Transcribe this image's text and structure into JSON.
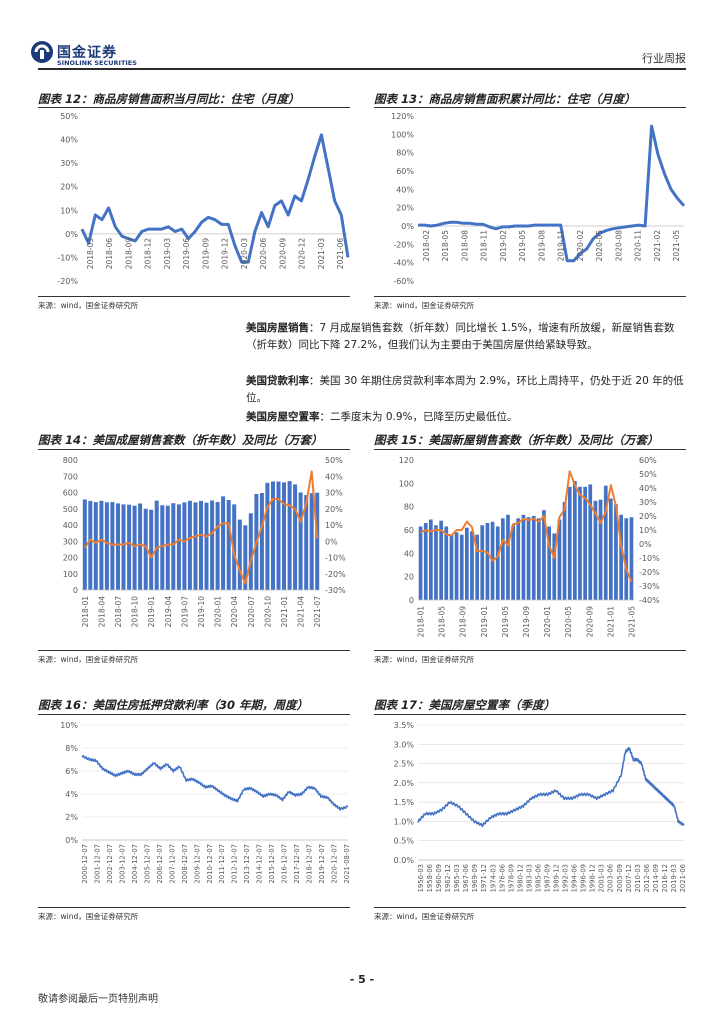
{
  "header": {
    "logo_cn": "国金证券",
    "logo_en": "SINOLINK SECURITIES",
    "report_type": "行业周报"
  },
  "figures": {
    "f12": {
      "title": "图表 12：商品房销售面积当月同比：住宅（月度）",
      "source": "来源：wind，国金证券研究所"
    },
    "f13": {
      "title": "图表 13：商品房销售面积累计同比：住宅（月度）",
      "source": "来源：wind，国金证券研究所"
    },
    "f14": {
      "title": "图表 14：美国成屋销售套数（折年数）及同比（万套）",
      "source": "来源：wind，国金证券研究所"
    },
    "f15": {
      "title": "图表 15：美国新屋销售套数（折年数）及同比（万套）",
      "source": "来源：wind，国金证券研究所"
    },
    "f16": {
      "title": "图表 16：美国住房抵押贷款利率（30 年期，周度）",
      "source": "来源：wind，国金证券研究所"
    },
    "f17": {
      "title": "图表 17：美国房屋空置率（季度）",
      "source": "来源：wind，国金证券研究所"
    }
  },
  "paragraphs": [
    {
      "label": "美国房屋销售",
      "text": "：7 月成屋销售套数（折年数）同比增长 1.5%，增速有所放缓，新屋销售套数（折年数）同比下降 27.2%，但我们认为主要由于美国房屋供给紧缺导致。"
    },
    {
      "label": "美国贷款利率",
      "text": "：美国 30 年期住房贷款利率本周为 2.9%，环比上周持平，仍处于近 20 年的低位。"
    },
    {
      "label": "美国房屋空置率",
      "text": "：二季度末为 0.9%，已降至历史最低位。"
    }
  ],
  "footer": {
    "page": "- 5 -",
    "disclaimer": "敬请参阅最后一页特别声明"
  },
  "colors": {
    "line": "#4472c4",
    "bar": "#4472c4",
    "line2": "#ed7d31"
  },
  "chart_data": [
    {
      "id": "f12",
      "type": "line",
      "title": "商品房销售面积当月同比：住宅（月度）",
      "ylim": [
        -20,
        50
      ],
      "yticks": [
        "-20%",
        "-10%",
        "0%",
        "10%",
        "20%",
        "30%",
        "40%",
        "50%"
      ],
      "xticks": [
        "2018-03",
        "2018-06",
        "2018-09",
        "2018-12",
        "2019-03",
        "2019-06",
        "2019-09",
        "2019-12",
        "2020-03",
        "2020-06",
        "2020-09",
        "2020-12",
        "2021-03",
        "2021-06"
      ],
      "x": [
        "2018-03",
        "2018-04",
        "2018-05",
        "2018-06",
        "2018-07",
        "2018-08",
        "2018-09",
        "2018-10",
        "2018-11",
        "2018-12",
        "2019-01",
        "2019-02",
        "2019-03",
        "2019-04",
        "2019-05",
        "2019-06",
        "2019-07",
        "2019-08",
        "2019-09",
        "2019-10",
        "2019-11",
        "2019-12",
        "2020-01",
        "2020-02",
        "2020-03",
        "2020-04",
        "2020-05",
        "2020-06",
        "2020-07",
        "2020-08",
        "2020-09",
        "2020-10",
        "2020-11",
        "2020-12",
        "2021-01",
        "2021-02",
        "2021-03",
        "2021-04",
        "2021-05",
        "2021-06",
        "2021-07"
      ],
      "values": [
        2,
        -4,
        8,
        6,
        11,
        3,
        -1,
        -2,
        -3,
        1,
        2,
        2,
        2,
        3,
        1,
        2,
        -2,
        1,
        5,
        7,
        6,
        4,
        4,
        -5,
        -12,
        -12,
        1,
        9,
        3,
        12,
        14,
        8,
        16,
        14,
        23,
        33,
        42,
        28,
        14,
        8,
        -10
      ]
    },
    {
      "id": "f13",
      "type": "line",
      "title": "商品房销售面积累计同比：住宅（月度）",
      "ylim": [
        -60,
        120
      ],
      "yticks": [
        "-60%",
        "-40%",
        "-20%",
        "0%",
        "20%",
        "40%",
        "60%",
        "80%",
        "100%",
        "120%"
      ],
      "xticks": [
        "2018-02",
        "2018-05",
        "2018-08",
        "2018-11",
        "2019-02",
        "2019-05",
        "2019-08",
        "2019-11",
        "2020-02",
        "2020-05",
        "2020-08",
        "2020-11",
        "2021-02",
        "2021-05"
      ],
      "x": [
        "2018-02",
        "2018-03",
        "2018-04",
        "2018-05",
        "2018-06",
        "2018-07",
        "2018-08",
        "2018-09",
        "2018-10",
        "2018-11",
        "2018-12",
        "2019-01",
        "2019-02",
        "2019-03",
        "2019-04",
        "2019-05",
        "2019-06",
        "2019-07",
        "2019-08",
        "2019-09",
        "2019-10",
        "2019-11",
        "2019-12",
        "2020-01",
        "2020-02",
        "2020-03",
        "2020-04",
        "2020-05",
        "2020-06",
        "2020-07",
        "2020-08",
        "2020-09",
        "2020-10",
        "2020-11",
        "2020-12",
        "2021-01",
        "2021-02",
        "2021-03",
        "2021-04",
        "2021-05",
        "2021-06",
        "2021-07"
      ],
      "values": [
        1,
        1,
        0,
        1,
        3,
        4,
        4,
        3,
        3,
        2,
        2,
        -1,
        -3,
        -1,
        -1,
        0,
        0,
        0,
        1,
        1,
        1,
        1,
        1,
        -38,
        -38,
        -30,
        -25,
        -14,
        -8,
        -5,
        -3,
        -2,
        -1,
        0,
        1,
        0,
        109,
        78,
        57,
        40,
        30,
        22
      ]
    },
    {
      "id": "f14",
      "type": "bar+line",
      "title": "美国成屋销售套数（折年数）及同比（万套）",
      "ylim": [
        0,
        800
      ],
      "y2lim": [
        -30,
        50
      ],
      "yticks": [
        "0",
        "100",
        "200",
        "300",
        "400",
        "500",
        "600",
        "700",
        "800"
      ],
      "y2ticks": [
        "-30%",
        "-20%",
        "-10%",
        "0%",
        "10%",
        "20%",
        "30%",
        "40%",
        "50%"
      ],
      "xticks": [
        "2018-01",
        "2018-04",
        "2018-07",
        "2018-10",
        "2019-01",
        "2019-04",
        "2019-07",
        "2019-10",
        "2020-01",
        "2020-04",
        "2020-07",
        "2020-10",
        "2021-01",
        "2021-04",
        "2021-07"
      ],
      "series": [
        {
          "name": "成屋销售套数",
          "values": [
            557,
            548,
            541,
            549,
            540,
            541,
            533,
            527,
            525,
            519,
            532,
            500,
            494,
            550,
            521,
            519,
            534,
            527,
            539,
            549,
            539,
            548,
            537,
            551,
            541,
            576,
            554,
            527,
            433,
            398,
            472,
            591,
            597,
            660,
            668,
            667,
            662,
            670,
            650,
            600,
            584,
            596,
            599
          ]
        },
        {
          "name": "同比",
          "values": [
            -4,
            1,
            -1,
            1,
            -1,
            -2,
            -2,
            -2,
            -1,
            -3,
            -2,
            -3,
            -10,
            -4,
            -3,
            -2,
            -2,
            1,
            0,
            2,
            3,
            4,
            3,
            5,
            9,
            11,
            11,
            -8,
            -18,
            -26,
            -12,
            -1,
            9,
            21,
            26,
            26,
            23,
            22,
            20,
            12,
            23,
            43,
            1.5
          ]
        }
      ]
    },
    {
      "id": "f15",
      "type": "bar+line",
      "title": "美国新屋销售套数（折年数）及同比（万套）",
      "ylim": [
        0,
        120
      ],
      "y2lim": [
        -40,
        60
      ],
      "yticks": [
        "0",
        "20",
        "40",
        "60",
        "80",
        "100",
        "120"
      ],
      "y2ticks": [
        "-40%",
        "-30%",
        "-20%",
        "-10%",
        "0%",
        "10%",
        "20%",
        "30%",
        "40%",
        "50%",
        "60%"
      ],
      "xticks": [
        "2018-01",
        "2018-05",
        "2018-09",
        "2019-01",
        "2019-05",
        "2019-09",
        "2020-01",
        "2020-05",
        "2020-09",
        "2021-01",
        "2021-05"
      ],
      "series": [
        {
          "name": "新屋销售套数",
          "values": [
            63,
            66,
            69,
            64,
            68,
            63,
            56,
            58,
            56,
            62,
            59,
            56,
            64,
            66,
            67,
            63,
            70,
            73,
            64,
            70,
            73,
            71,
            72,
            70,
            77,
            63,
            57,
            69,
            84,
            97,
            102,
            97,
            97,
            99,
            85,
            86,
            98,
            87,
            82,
            73,
            70,
            71
          ]
        },
        {
          "name": "同比",
          "values": [
            8,
            10,
            9,
            10,
            10,
            7,
            6,
            10,
            10,
            16,
            12,
            -5,
            -5,
            -6,
            -12,
            -9,
            3,
            -1,
            14,
            15,
            18,
            17,
            18,
            16,
            20,
            -1,
            -10,
            19,
            25,
            52,
            42,
            35,
            33,
            28,
            22,
            15,
            23,
            42,
            27,
            -1,
            -18,
            -27
          ]
        }
      ]
    },
    {
      "id": "f16",
      "type": "line",
      "title": "美国住房抵押贷款利率（30 年期，周度）",
      "ylim": [
        0,
        10
      ],
      "yticks": [
        "0%",
        "2%",
        "4%",
        "6%",
        "8%",
        "10%"
      ],
      "xticks": [
        "2000-12-07",
        "2001-12-07",
        "2002-12-07",
        "2003-12-07",
        "2004-12-07",
        "2005-12-07",
        "2006-12-07",
        "2007-12-07",
        "2008-12-07",
        "2009-12-07",
        "2010-12-07",
        "2011-12-07",
        "2012-12-07",
        "2013-12-07",
        "2014-12-07",
        "2015-12-07",
        "2016-12-07",
        "2017-12-07",
        "2018-12-07",
        "2019-12-07",
        "2020-12-07",
        "2021-08-07"
      ],
      "x": [
        2000.9,
        2001.5,
        2002.0,
        2002.5,
        2003.0,
        2003.5,
        2004.0,
        2004.5,
        2005.0,
        2005.5,
        2006.0,
        2006.5,
        2007.0,
        2007.5,
        2008.0,
        2008.5,
        2009.0,
        2009.5,
        2010.0,
        2010.5,
        2011.0,
        2011.5,
        2012.0,
        2012.5,
        2013.0,
        2013.5,
        2014.0,
        2014.5,
        2015.0,
        2015.5,
        2016.0,
        2016.5,
        2017.0,
        2017.5,
        2018.0,
        2018.5,
        2019.0,
        2019.5,
        2020.0,
        2020.5,
        2021.0,
        2021.6
      ],
      "values": [
        7.3,
        7.0,
        6.9,
        6.2,
        5.9,
        5.6,
        5.8,
        6.0,
        5.7,
        5.7,
        6.2,
        6.7,
        6.2,
        6.6,
        6.0,
        6.4,
        5.2,
        5.3,
        5.0,
        4.6,
        4.7,
        4.3,
        3.9,
        3.6,
        3.4,
        4.4,
        4.5,
        4.2,
        3.8,
        4.0,
        3.9,
        3.5,
        4.2,
        3.9,
        4.0,
        4.6,
        4.5,
        3.8,
        3.7,
        3.1,
        2.7,
        2.9
      ]
    },
    {
      "id": "f17",
      "type": "line",
      "title": "美国房屋空置率（季度）",
      "ylim": [
        0,
        3.5
      ],
      "yticks": [
        "0.0%",
        "0.5%",
        "1.0%",
        "1.5%",
        "2.0%",
        "2.5%",
        "3.0%",
        "3.5%"
      ],
      "xticks": [
        "1956-03",
        "1958-06",
        "1960-09",
        "1962-12",
        "1965-03",
        "1967-06",
        "1969-09",
        "1971-12",
        "1974-03",
        "1976-06",
        "1978-09",
        "1980-12",
        "1983-03",
        "1985-06",
        "1987-09",
        "1989-12",
        "1992-03",
        "1994-06",
        "1996-09",
        "1998-12",
        "2001-03",
        "2003-06",
        "2005-09",
        "2007-12",
        "2010-03",
        "2012-06",
        "2014-09",
        "2016-12",
        "2019-03",
        "2021-06"
      ],
      "x": [
        1956.2,
        1958,
        1960,
        1962,
        1964,
        1966,
        1968,
        1970,
        1972,
        1974,
        1976,
        1978,
        1980,
        1982,
        1984,
        1986,
        1988,
        1990,
        1992,
        1994,
        1996,
        1998,
        2000,
        2002,
        2004,
        2006,
        2007,
        2008,
        2009,
        2010,
        2011,
        2012,
        2013,
        2014,
        2015,
        2016,
        2017,
        2018,
        2019,
        2020,
        2021.4
      ],
      "values": [
        1.0,
        1.2,
        1.2,
        1.3,
        1.5,
        1.4,
        1.2,
        1.0,
        0.9,
        1.1,
        1.2,
        1.2,
        1.3,
        1.4,
        1.6,
        1.7,
        1.7,
        1.8,
        1.6,
        1.6,
        1.7,
        1.7,
        1.6,
        1.7,
        1.8,
        2.2,
        2.8,
        2.9,
        2.6,
        2.6,
        2.5,
        2.1,
        2.0,
        1.9,
        1.8,
        1.7,
        1.6,
        1.5,
        1.4,
        1.0,
        0.9
      ]
    }
  ]
}
